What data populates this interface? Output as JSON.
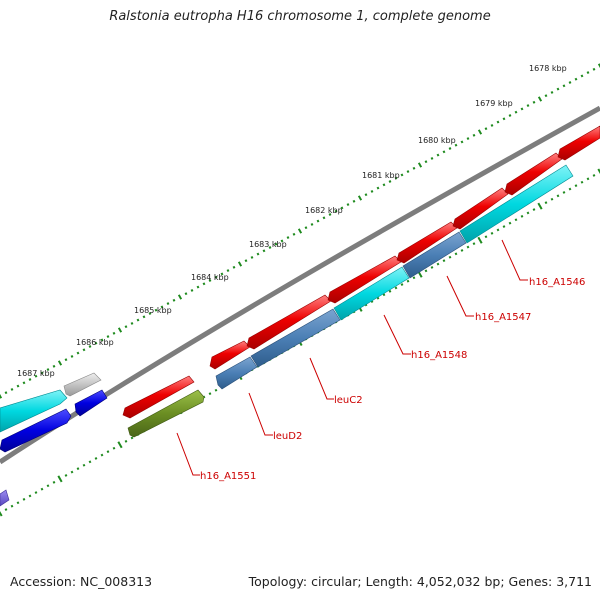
{
  "title": "Ralstonia eutropha H16 chromosome 1, complete genome",
  "footer": {
    "accession": "Accession: NC_008313",
    "topology": "Topology: circular; Length: 4,052,032 bp; Genes: 3,711"
  },
  "scale_labels": [
    "1678 kbp",
    "1679 kbp",
    "1680 kbp",
    "1681 kbp",
    "1682 kbp",
    "1683 kbp",
    "1684 kbp",
    "1685 kbp",
    "1686 kbp",
    "1687 kbp"
  ],
  "gene_labels": [
    "h16_A1546",
    "h16_A1547",
    "h16_A1548",
    "leuC2",
    "leuD2",
    "h16_A1551"
  ],
  "colors": {
    "backbone": "#7d7d7d",
    "cds_forward": "#ee0000",
    "cds_reverse_blue": "#4b7fb5",
    "cds_cyan": "#00d0d8",
    "cds_olive": "#6b8e23",
    "cds_dark_blue": "#0000dd",
    "cds_grey": "#c4c4c4",
    "tick_green": "#1e8a1e",
    "label_red": "#cc0000"
  }
}
